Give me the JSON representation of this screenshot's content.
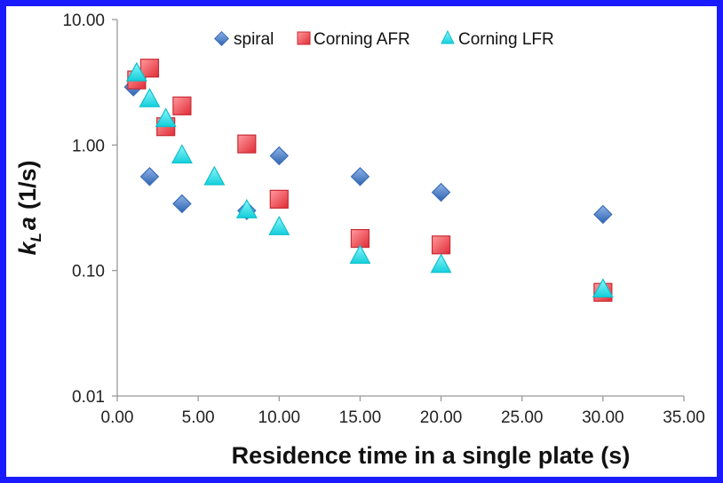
{
  "chart_data": {
    "type": "scatter",
    "xlabel": "Residence time in a single plate (s)",
    "ylabel_main": "k",
    "ylabel_sub": "L",
    "ylabel_tail": "a",
    "ylabel_unit": "(1/s)",
    "xlim": [
      0,
      35
    ],
    "ylim": [
      0.01,
      10
    ],
    "yscale": "log",
    "x_ticks": [
      "0.00",
      "5.00",
      "10.00",
      "15.00",
      "20.00",
      "25.00",
      "30.00",
      "35.00"
    ],
    "y_ticks": [
      "0.01",
      "0.10",
      "1.00",
      "10.00"
    ],
    "grid": false,
    "legend_position": "top-right",
    "series": [
      {
        "name": "spiral",
        "marker": "diamond",
        "color": "#4a7fc8",
        "points": [
          {
            "x": 1,
            "y": 2.9
          },
          {
            "x": 2,
            "y": 0.56
          },
          {
            "x": 4,
            "y": 0.34
          },
          {
            "x": 8,
            "y": 0.3
          },
          {
            "x": 10,
            "y": 0.82
          },
          {
            "x": 15,
            "y": 0.56
          },
          {
            "x": 20,
            "y": 0.42
          },
          {
            "x": 30,
            "y": 0.28
          }
        ]
      },
      {
        "name": "Corning AFR",
        "marker": "square",
        "color": "#ef4d55",
        "points": [
          {
            "x": 1.2,
            "y": 3.3
          },
          {
            "x": 2,
            "y": 4.1
          },
          {
            "x": 3,
            "y": 1.4
          },
          {
            "x": 4,
            "y": 2.05
          },
          {
            "x": 8,
            "y": 1.02
          },
          {
            "x": 10,
            "y": 0.37
          },
          {
            "x": 15,
            "y": 0.18
          },
          {
            "x": 20,
            "y": 0.16
          },
          {
            "x": 30,
            "y": 0.067
          }
        ]
      },
      {
        "name": "Corning LFR",
        "marker": "triangle",
        "color": "#22dde8",
        "points": [
          {
            "x": 1.2,
            "y": 3.7
          },
          {
            "x": 2,
            "y": 2.3
          },
          {
            "x": 3,
            "y": 1.6
          },
          {
            "x": 4,
            "y": 0.82
          },
          {
            "x": 6,
            "y": 0.55
          },
          {
            "x": 8,
            "y": 0.3
          },
          {
            "x": 10,
            "y": 0.22
          },
          {
            "x": 15,
            "y": 0.13
          },
          {
            "x": 20,
            "y": 0.11
          },
          {
            "x": 30,
            "y": 0.07
          }
        ]
      }
    ]
  }
}
